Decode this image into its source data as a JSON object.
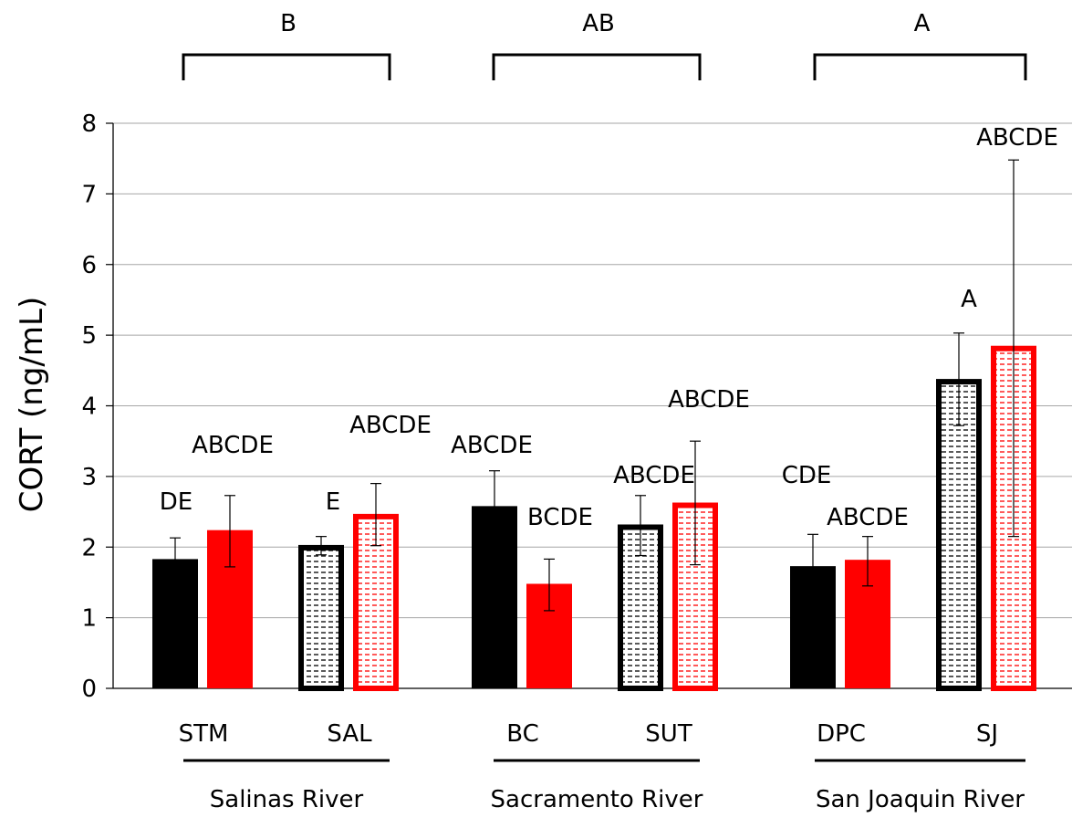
{
  "chart_data": {
    "type": "bar",
    "ylabel": "CORT (ng/mL)",
    "ylim": [
      0,
      8
    ],
    "yticks": [
      "0",
      "1",
      "2",
      "3",
      "4",
      "5",
      "6",
      "7",
      "8"
    ],
    "grid": true,
    "colors": {
      "black": "#000000",
      "red": "#ff0000",
      "gridline": "#a6a6a6",
      "hatch_fill_white": "#ffffff"
    },
    "sites": [
      {
        "label": "STM",
        "bars": [
          {
            "value": 1.83,
            "err_low": 1.53,
            "err_high": 2.13,
            "color": "black",
            "pattern": "solid",
            "letter": "DE"
          },
          {
            "value": 2.24,
            "err_low": 1.72,
            "err_high": 2.73,
            "color": "red",
            "pattern": "solid",
            "letter": "ABCDE"
          }
        ]
      },
      {
        "label": "SAL",
        "bars": [
          {
            "value": 2.03,
            "err_low": 1.89,
            "err_high": 2.15,
            "color": "black",
            "pattern": "dashed",
            "letter": "E"
          },
          {
            "value": 2.47,
            "err_low": 2.02,
            "err_high": 2.9,
            "color": "red",
            "pattern": "dashed",
            "letter": "ABCDE"
          }
        ]
      },
      {
        "label": "BC",
        "bars": [
          {
            "value": 2.58,
            "err_low": 2.07,
            "err_high": 3.08,
            "color": "black",
            "pattern": "solid",
            "letter": "ABCDE"
          },
          {
            "value": 1.48,
            "err_low": 1.1,
            "err_high": 1.83,
            "color": "red",
            "pattern": "solid",
            "letter": "BCDE"
          }
        ]
      },
      {
        "label": "SUT",
        "bars": [
          {
            "value": 2.32,
            "err_low": 1.88,
            "err_high": 2.73,
            "color": "black",
            "pattern": "dashed",
            "letter": "ABCDE"
          },
          {
            "value": 2.63,
            "err_low": 1.75,
            "err_high": 3.5,
            "color": "red",
            "pattern": "dashed",
            "letter": "ABCDE"
          }
        ]
      },
      {
        "label": "DPC",
        "bars": [
          {
            "value": 1.73,
            "err_low": 1.32,
            "err_high": 2.18,
            "color": "black",
            "pattern": "solid",
            "letter": "CDE"
          },
          {
            "value": 1.82,
            "err_low": 1.45,
            "err_high": 2.15,
            "color": "red",
            "pattern": "solid",
            "letter": "ABCDE"
          }
        ]
      },
      {
        "label": "SJ",
        "bars": [
          {
            "value": 4.38,
            "err_low": 3.72,
            "err_high": 5.03,
            "color": "black",
            "pattern": "dashed",
            "letter": "A"
          },
          {
            "value": 4.85,
            "err_low": 2.15,
            "err_high": 7.48,
            "color": "red",
            "pattern": "dashed",
            "letter": "ABCDE"
          }
        ]
      }
    ],
    "rivers": [
      {
        "name": "Salinas River",
        "letter": "B"
      },
      {
        "name": "Sacramento River",
        "letter": "AB"
      },
      {
        "name": "San Joaquin River",
        "letter": "A"
      }
    ]
  }
}
